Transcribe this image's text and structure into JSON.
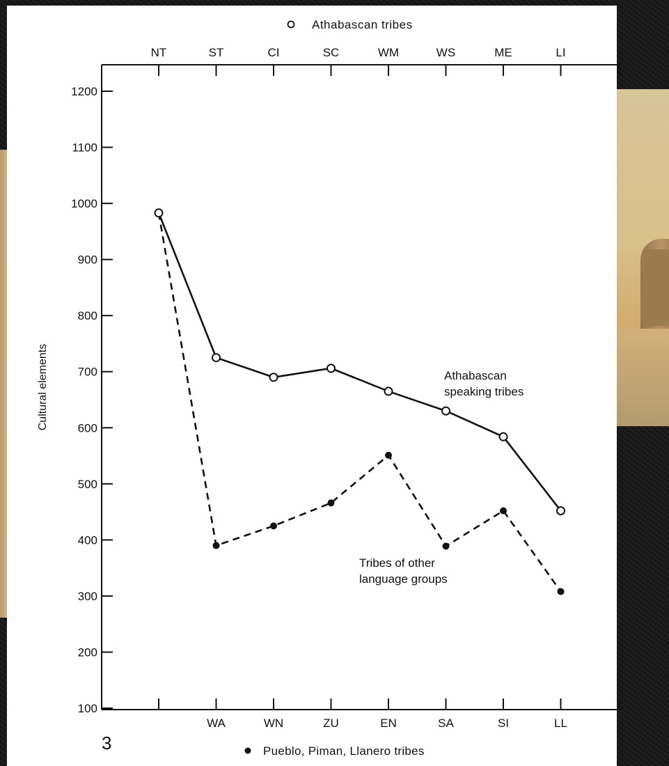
{
  "chart_data": {
    "type": "line",
    "figure_number": "3",
    "ylabel": "Cultural elements",
    "ylim": [
      100,
      1200
    ],
    "yticks": [
      100,
      200,
      300,
      400,
      500,
      600,
      700,
      800,
      900,
      1000,
      1100,
      1200
    ],
    "top_axis": {
      "legend": "Athabascan tribes",
      "legend_marker": "open-circle",
      "categories": [
        "NT",
        "ST",
        "CI",
        "SC",
        "WM",
        "WS",
        "ME",
        "LI"
      ]
    },
    "bottom_axis": {
      "legend": "Pueblo, Piman, Llanero tribes",
      "legend_marker": "filled-circle",
      "categories": [
        "",
        "WA",
        "WN",
        "ZU",
        "EN",
        "SA",
        "SI",
        "LL"
      ]
    },
    "series": [
      {
        "name": "Athabascan speaking tribes",
        "marker": "open-circle",
        "line_style": "solid",
        "values": [
          983,
          725,
          690,
          706,
          665,
          630,
          584,
          452
        ]
      },
      {
        "name": "Tribes of other language groups",
        "marker": "filled-circle",
        "line_style": "dashed",
        "start_value": 983,
        "values": [
          null,
          390,
          425,
          466,
          551,
          389,
          452,
          308
        ]
      }
    ],
    "annotations": [
      {
        "series": 0,
        "lines": [
          "Athabascan",
          "speaking tribes"
        ]
      },
      {
        "series": 1,
        "lines": [
          "Tribes of other",
          "language groups"
        ]
      }
    ],
    "grid": false,
    "colors": {
      "ink": "#111111",
      "paper": "#ffffff"
    }
  }
}
